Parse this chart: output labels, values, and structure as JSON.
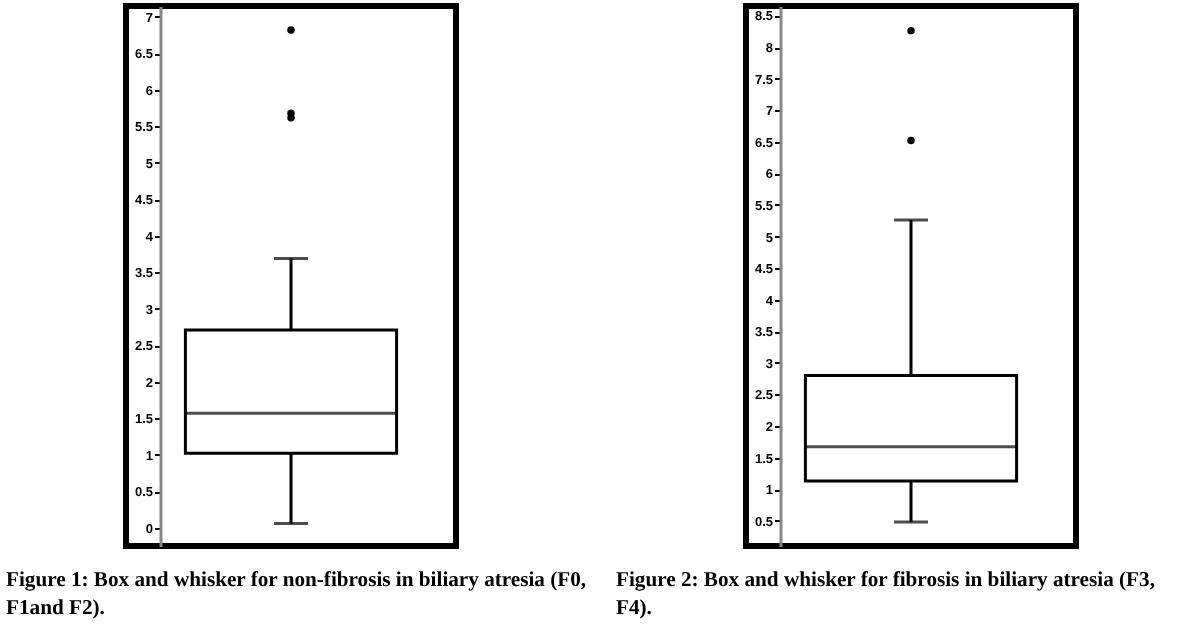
{
  "chart_data": [
    {
      "type": "box",
      "categories": [
        null
      ],
      "ylim": [
        -0.25,
        7.15
      ],
      "yticks": [
        0,
        0.5,
        1,
        1.5,
        2,
        2.5,
        3,
        3.5,
        4,
        4.5,
        5,
        5.5,
        6,
        6.5,
        7
      ],
      "tick_labels": "y",
      "grid": false,
      "boxes": [
        {
          "low": 0.06,
          "q1": 1.02,
          "median": 1.57,
          "q3": 2.71,
          "high": 3.69,
          "outliers": [
            6.82,
            5.68,
            5.62
          ]
        }
      ],
      "annotations": [
        "Figure 1: Box and whisker for non-fibrosis in biliary atresia (F0, F1and F2)."
      ]
    },
    {
      "type": "box",
      "categories": [
        null
      ],
      "ylim": [
        0.1,
        8.65
      ],
      "yticks": [
        0.5,
        1,
        1.5,
        2,
        2.5,
        3,
        3.5,
        4,
        4.5,
        5,
        5.5,
        6,
        6.5,
        7,
        7.5,
        8,
        8.5
      ],
      "tick_labels": "y",
      "grid": false,
      "boxes": [
        {
          "low": 0.48,
          "q1": 1.13,
          "median": 1.67,
          "q3": 2.8,
          "high": 5.26,
          "outliers": [
            8.26,
            6.52
          ]
        }
      ],
      "annotations": [
        "Figure 2: Box and whisker for fibrosis in biliary atresia (F3, F4)."
      ]
    }
  ]
}
